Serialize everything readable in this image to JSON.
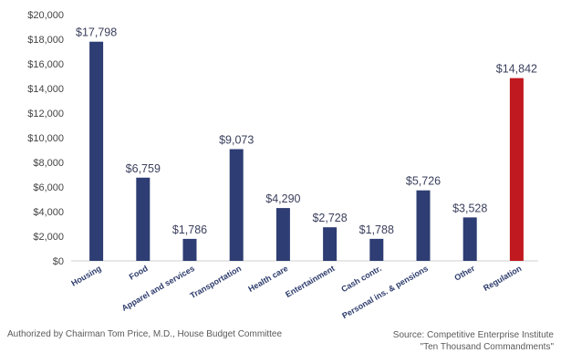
{
  "chart_data": {
    "type": "bar",
    "categories": [
      "Housing",
      "Food",
      "Apparel and services",
      "Transportation",
      "Health care",
      "Entertainment",
      "Cash contr.",
      "Personal ins. & pensions",
      "Other",
      "Regulation"
    ],
    "values": [
      17798,
      6759,
      1786,
      9073,
      4290,
      2728,
      1788,
      5726,
      3528,
      14842
    ],
    "data_labels": [
      "$17,798",
      "$6,759",
      "$1,786",
      "$9,073",
      "$4,290",
      "$2,728",
      "$1,788",
      "$5,726",
      "$3,528",
      "$14,842"
    ],
    "y_ticks": [
      "$0",
      "$2,000",
      "$4,000",
      "$6,000",
      "$8,000",
      "$10,000",
      "$12,000",
      "$14,000",
      "$16,000",
      "$18,000",
      "$20,000"
    ],
    "ylim": [
      0,
      20000
    ],
    "grid": false,
    "colors": {
      "default": "#2e3d73",
      "highlight": "#c0191f",
      "highlight_label": "#c0191f"
    },
    "highlight_index": 9
  },
  "footer": {
    "left": "Authorized by Chairman Tom Price, M.D., House Budget Committee",
    "right_line1": "Source: Competitive Enterprise Institute",
    "right_line2": "\"Ten Thousand Commandments\""
  }
}
